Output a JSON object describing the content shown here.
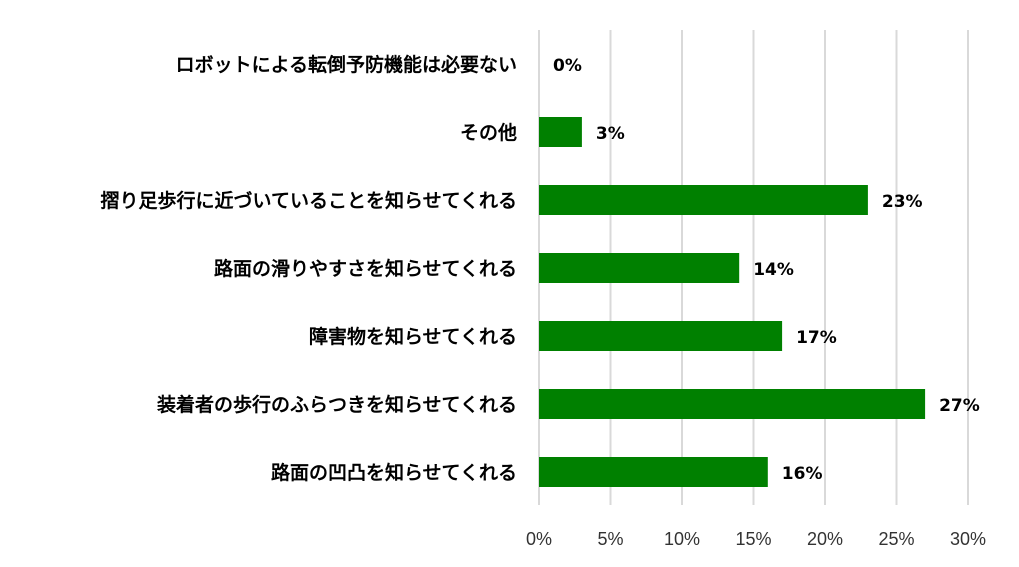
{
  "chart_data": {
    "type": "bar",
    "orientation": "horizontal",
    "categories": [
      "ロボットによる転倒予防機能は必要ない",
      "その他",
      "摺り足歩行に近づいていることを知らせてくれる",
      "路面の滑りやすさを知らせてくれる",
      "障害物を知らせてくれる",
      "装着者の歩行のふらつきを知らせてくれる",
      "路面の凹凸を知らせてくれる"
    ],
    "values": [
      0,
      3,
      23,
      14,
      17,
      27,
      16
    ],
    "value_labels": [
      "0%",
      "3%",
      "23%",
      "14%",
      "17%",
      "27%",
      "16%"
    ],
    "xlim": [
      0,
      30
    ],
    "xticks": [
      0,
      5,
      10,
      15,
      20,
      25,
      30
    ],
    "xtick_labels": [
      "0%",
      "5%",
      "10%",
      "15%",
      "20%",
      "25%",
      "30%"
    ],
    "grid": true,
    "bar_color": "#008000",
    "title": "",
    "xlabel": "",
    "ylabel": ""
  }
}
